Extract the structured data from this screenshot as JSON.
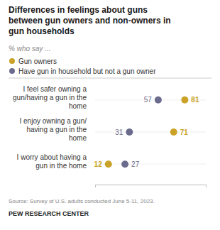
{
  "chart_data": {
    "type": "dot",
    "title": "Differences in feelings about guns\nbetween gun owners and non-owners in\ngun households",
    "subtitle": "% who say ...",
    "categories": [
      "I feel safer owning a\ngun/having a gun in the\nhome",
      "I enjoy owning a gun/\nhaving a gun in the\nhome",
      "I worry about having a\ngun in the home"
    ],
    "series": [
      {
        "name": "Gun owners",
        "color": "#C9A227",
        "values": [
          81,
          71,
          12
        ]
      },
      {
        "name": "Have gun in household but not a gun owner",
        "color": "#6B6B8D",
        "values": [
          57,
          31,
          27
        ]
      }
    ],
    "xlim": [
      0,
      100
    ],
    "tick_labels": false,
    "data_labels": true,
    "annotations": [
      "Source: Survey of U.S. adults conducted June 5-11, 2023.",
      "PEW RESEARCH CENTER"
    ]
  }
}
